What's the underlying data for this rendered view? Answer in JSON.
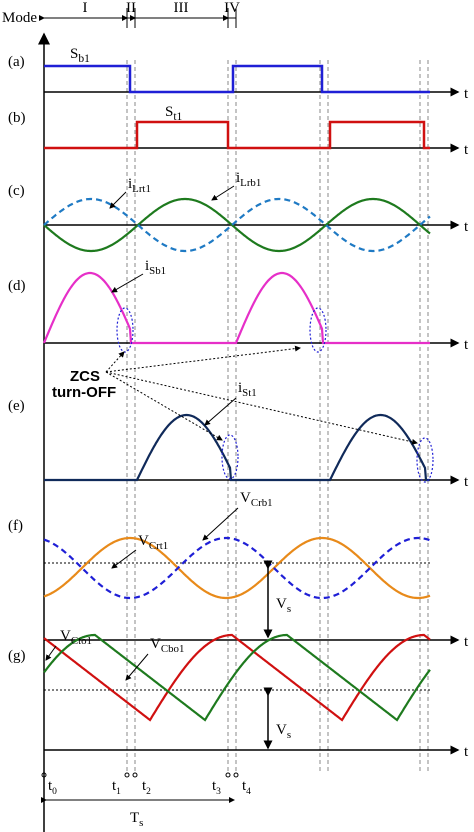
{
  "mode_label": "Mode",
  "modes": [
    "I",
    "II",
    "III",
    "IV"
  ],
  "panel_labels": [
    "(a)",
    "(b)",
    "(c)",
    "(d)",
    "(e)",
    "(f)",
    "(g)"
  ],
  "axis_labels": [
    "t",
    "t",
    "t",
    "t",
    "t",
    "t",
    "t"
  ],
  "signals": {
    "sb1": {
      "main": "S",
      "sub": "b1"
    },
    "st1": {
      "main": "S",
      "sub": "t1"
    },
    "ilrt1": {
      "main": "i",
      "sub": "Lrt1"
    },
    "ilrb1": {
      "main": "i",
      "sub": "Lrb1"
    },
    "isb1": {
      "main": "i",
      "sub": "Sb1"
    },
    "ist1": {
      "main": "i",
      "sub": "St1"
    },
    "vcrt1": {
      "main": "V",
      "sub": "Crt1"
    },
    "vcrb1": {
      "main": "V",
      "sub": "Crb1"
    },
    "vcto1": {
      "main": "V",
      "sub": "Cto1"
    },
    "vcbo1": {
      "main": "V",
      "sub": "Cbo1"
    }
  },
  "zcs": [
    "ZCS",
    "turn-OFF"
  ],
  "vs": [
    {
      "main": "V",
      "sub": "s"
    },
    {
      "main": "V",
      "sub": "s"
    }
  ],
  "times": [
    {
      "main": "t",
      "sub": "0"
    },
    {
      "main": "t",
      "sub": "1"
    },
    {
      "main": "t",
      "sub": "2"
    },
    {
      "main": "t",
      "sub": "3"
    },
    {
      "main": "t",
      "sub": "4"
    }
  ],
  "period": {
    "main": "T",
    "sub": "s"
  }
}
